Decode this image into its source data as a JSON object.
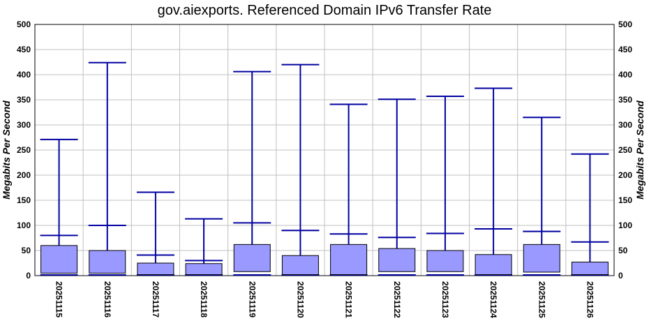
{
  "chart_data": {
    "type": "box",
    "title": "gov.aiexports. Referenced Domain IPv6 Transfer Rate",
    "ylabel_left": "Megabits Per Second",
    "ylabel_right": "Megabits Per Second",
    "ylim": [
      0,
      500
    ],
    "yticks": [
      0,
      50,
      100,
      150,
      200,
      250,
      300,
      350,
      400,
      450,
      500
    ],
    "grid": true,
    "colors": {
      "box_fill": "#9999ff",
      "box_stroke": "#000000",
      "whisker": "#0000a0",
      "grid": "#c0c0c0"
    },
    "categories": [
      "20251115",
      "20251116",
      "20251117",
      "20251118",
      "20251119",
      "20251120",
      "20251121",
      "20251122",
      "20251123",
      "20251124",
      "20251125",
      "20251126"
    ],
    "series": [
      {
        "box_low": [
          5,
          5,
          2,
          2,
          8,
          2,
          2,
          8,
          8,
          2,
          7,
          2
        ],
        "box_high": [
          60,
          50,
          25,
          24,
          62,
          40,
          62,
          54,
          50,
          42,
          62,
          27
        ],
        "whisker_mid": [
          80,
          100,
          41,
          30,
          105,
          90,
          83,
          76,
          84,
          93,
          88,
          67
        ],
        "whisker_top": [
          271,
          424,
          166,
          113,
          406,
          420,
          341,
          351,
          357,
          373,
          315,
          242
        ]
      }
    ]
  }
}
